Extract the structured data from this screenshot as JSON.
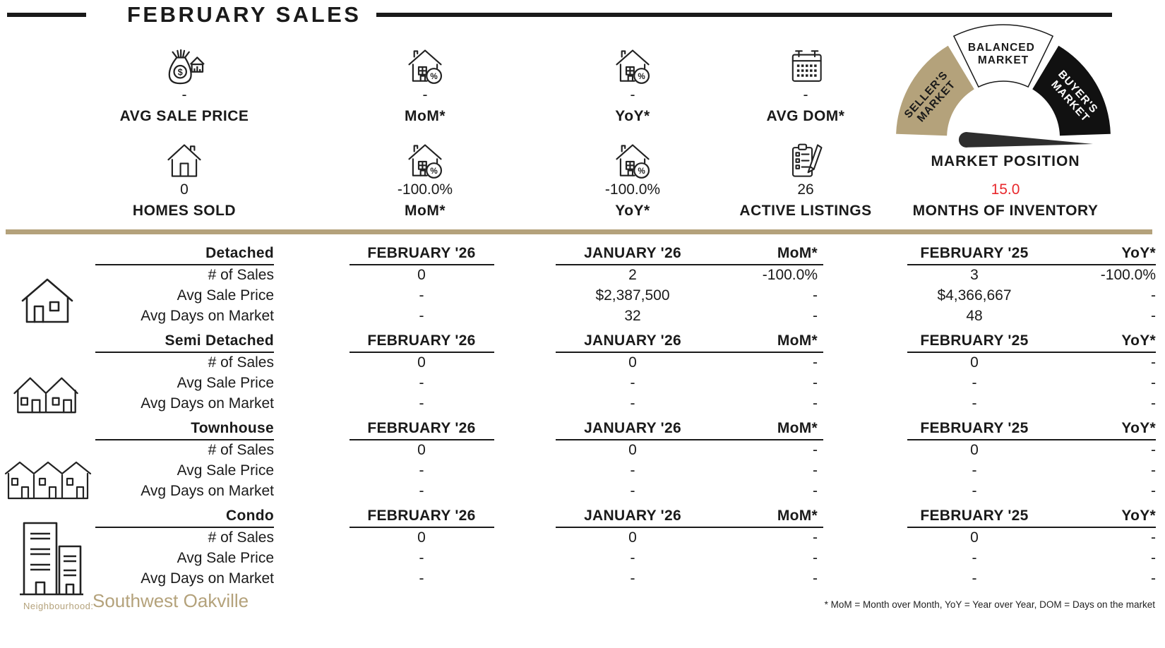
{
  "title": "FEBRUARY SALES",
  "colors": {
    "tan": "#b4a27b",
    "red": "#e8282c",
    "ink": "#1a1a1a"
  },
  "stats": {
    "row1": [
      {
        "icon": "money-bag-house-icon",
        "value": "-",
        "label": "AVG SALE PRICE"
      },
      {
        "icon": "house-percent-icon",
        "value": "-",
        "label": "MoM*"
      },
      {
        "icon": "house-percent-icon",
        "value": "-",
        "label": "YoY*"
      },
      {
        "icon": "calendar-icon",
        "value": "-",
        "label": "AVG DOM*"
      }
    ],
    "row2": [
      {
        "icon": "house-icon",
        "value": "0",
        "label": "HOMES SOLD"
      },
      {
        "icon": "house-percent-icon",
        "value": "-100.0%",
        "label": "MoM*"
      },
      {
        "icon": "house-percent-icon",
        "value": "-100.0%",
        "label": "YoY*"
      },
      {
        "icon": "clipboard-pencil-icon",
        "value": "26",
        "label": "ACTIVE LISTINGS"
      },
      {
        "value": "15.0",
        "label": "MONTHS OF INVENTORY",
        "value_color": "red"
      }
    ]
  },
  "chart_data": [
    {
      "type": "table",
      "title": "Sales by property type",
      "columns": [
        "FEBRUARY '26",
        "JANUARY '26",
        "MoM*",
        "FEBRUARY '25",
        "YoY*"
      ],
      "row_labels": [
        "# of Sales",
        "Avg Sale Price",
        "Avg Days on Market"
      ],
      "sections": [
        {
          "name": "Detached",
          "icon": "detached-house-icon",
          "rows": [
            [
              "0",
              "2",
              "-100.0%",
              "3",
              "-100.0%"
            ],
            [
              "-",
              "$2,387,500",
              "-",
              "$4,366,667",
              "-"
            ],
            [
              "-",
              "32",
              "-",
              "48",
              "-"
            ]
          ]
        },
        {
          "name": "Semi Detached",
          "icon": "semi-detached-houses-icon",
          "rows": [
            [
              "0",
              "0",
              "-",
              "0",
              "-"
            ],
            [
              "-",
              "-",
              "-",
              "-",
              "-"
            ],
            [
              "-",
              "-",
              "-",
              "-",
              "-"
            ]
          ]
        },
        {
          "name": "Townhouse",
          "icon": "townhouse-row-icon",
          "rows": [
            [
              "0",
              "0",
              "-",
              "0",
              "-"
            ],
            [
              "-",
              "-",
              "-",
              "-",
              "-"
            ],
            [
              "-",
              "-",
              "-",
              "-",
              "-"
            ]
          ]
        },
        {
          "name": "Condo",
          "icon": "condo-buildings-icon",
          "rows": [
            [
              "0",
              "0",
              "-",
              "0",
              "-"
            ],
            [
              "-",
              "-",
              "-",
              "-",
              "-"
            ],
            [
              "-",
              "-",
              "-",
              "-",
              "-"
            ]
          ]
        }
      ]
    },
    {
      "type": "gauge",
      "caption": "MARKET POSITION",
      "segments": [
        {
          "label_lines": [
            "SELLER'S",
            "MARKET"
          ],
          "color": "#b4a27b",
          "text_color": "#1a1a1a"
        },
        {
          "label_lines": [
            "BALANCED",
            "MARKET"
          ],
          "color": "#ffffff",
          "text_color": "#1a1a1a"
        },
        {
          "label_lines": [
            "BUYER'S",
            "MARKET"
          ],
          "color": "#111111",
          "text_color": "#ffffff"
        }
      ],
      "needle_points_to": "BUYER'S MARKET"
    }
  ],
  "footer": {
    "neighbourhood_label": "Neighbourhood:",
    "neighbourhood": "Southwest Oakville",
    "footnote": "* MoM = Month over Month, YoY = Year over Year, DOM = Days on the market"
  }
}
